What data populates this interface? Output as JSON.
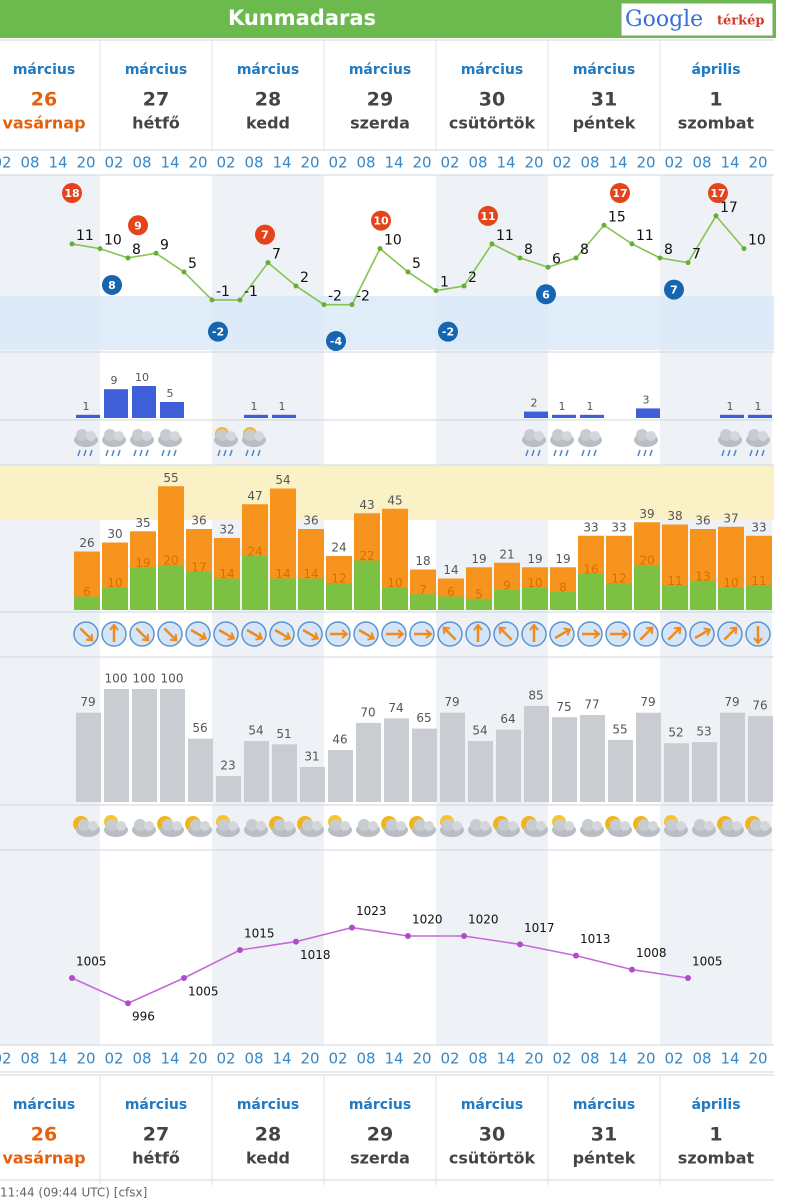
{
  "header": {
    "title": "Kunmadaras",
    "map_link": {
      "brand": "Google",
      "label": "térkép"
    }
  },
  "days": [
    {
      "month": "március",
      "day": 26,
      "weekday": "vasárnap"
    },
    {
      "month": "március",
      "day": 27,
      "weekday": "hétfő"
    },
    {
      "month": "március",
      "day": 28,
      "weekday": "kedd"
    },
    {
      "month": "március",
      "day": 29,
      "weekday": "szerda"
    },
    {
      "month": "március",
      "day": 30,
      "weekday": "csütörtök"
    },
    {
      "month": "március",
      "day": 31,
      "weekday": "péntek"
    },
    {
      "month": "április",
      "day": 1,
      "weekday": "szombat"
    }
  ],
  "hours": [
    "02",
    "08",
    "14",
    "20"
  ],
  "temperature": {
    "values": [
      11,
      10,
      8,
      9,
      5,
      -1,
      -1,
      7,
      2,
      -2,
      -2,
      10,
      5,
      1,
      2,
      11,
      8,
      6,
      8,
      15,
      11,
      8,
      7,
      17,
      10
    ],
    "daily_max": [
      18,
      9,
      7,
      10,
      11,
      17,
      17
    ],
    "daily_min": [
      8,
      -2,
      -4,
      -2,
      6,
      7
    ]
  },
  "precipitation": {
    "values": [
      null,
      null,
      null,
      1,
      9,
      10,
      5,
      null,
      null,
      1,
      1,
      null,
      null,
      null,
      null,
      null,
      null,
      null,
      null,
      2,
      1,
      1,
      null,
      3,
      null,
      null,
      1,
      1
    ]
  },
  "wind": {
    "gust": [
      26,
      30,
      35,
      55,
      36,
      32,
      47,
      54,
      36,
      24,
      43,
      45,
      18,
      14,
      19,
      21,
      19,
      19,
      33,
      33,
      39,
      38,
      36,
      37,
      33
    ],
    "speed": [
      6,
      10,
      19,
      20,
      17,
      14,
      24,
      14,
      14,
      12,
      22,
      10,
      7,
      6,
      5,
      9,
      10,
      8,
      16,
      12,
      20,
      11,
      13,
      10,
      11
    ],
    "direction": [
      135,
      0,
      135,
      135,
      120,
      120,
      120,
      120,
      120,
      90,
      120,
      90,
      90,
      315,
      0,
      315,
      0,
      60,
      90,
      90,
      45,
      45,
      60,
      45,
      180
    ]
  },
  "cloud_cover": {
    "values": [
      79,
      100,
      100,
      100,
      56,
      23,
      54,
      51,
      31,
      46,
      70,
      74,
      65,
      79,
      54,
      64,
      85,
      75,
      77,
      55,
      79,
      52,
      53,
      79,
      76
    ]
  },
  "pressure": {
    "values": [
      1005,
      996,
      1005,
      1015,
      1018,
      1023,
      1020,
      1020,
      1017,
      1013,
      1008,
      1005
    ]
  },
  "footer": "11:44 (09:44 UTC)  [cfsx]"
}
